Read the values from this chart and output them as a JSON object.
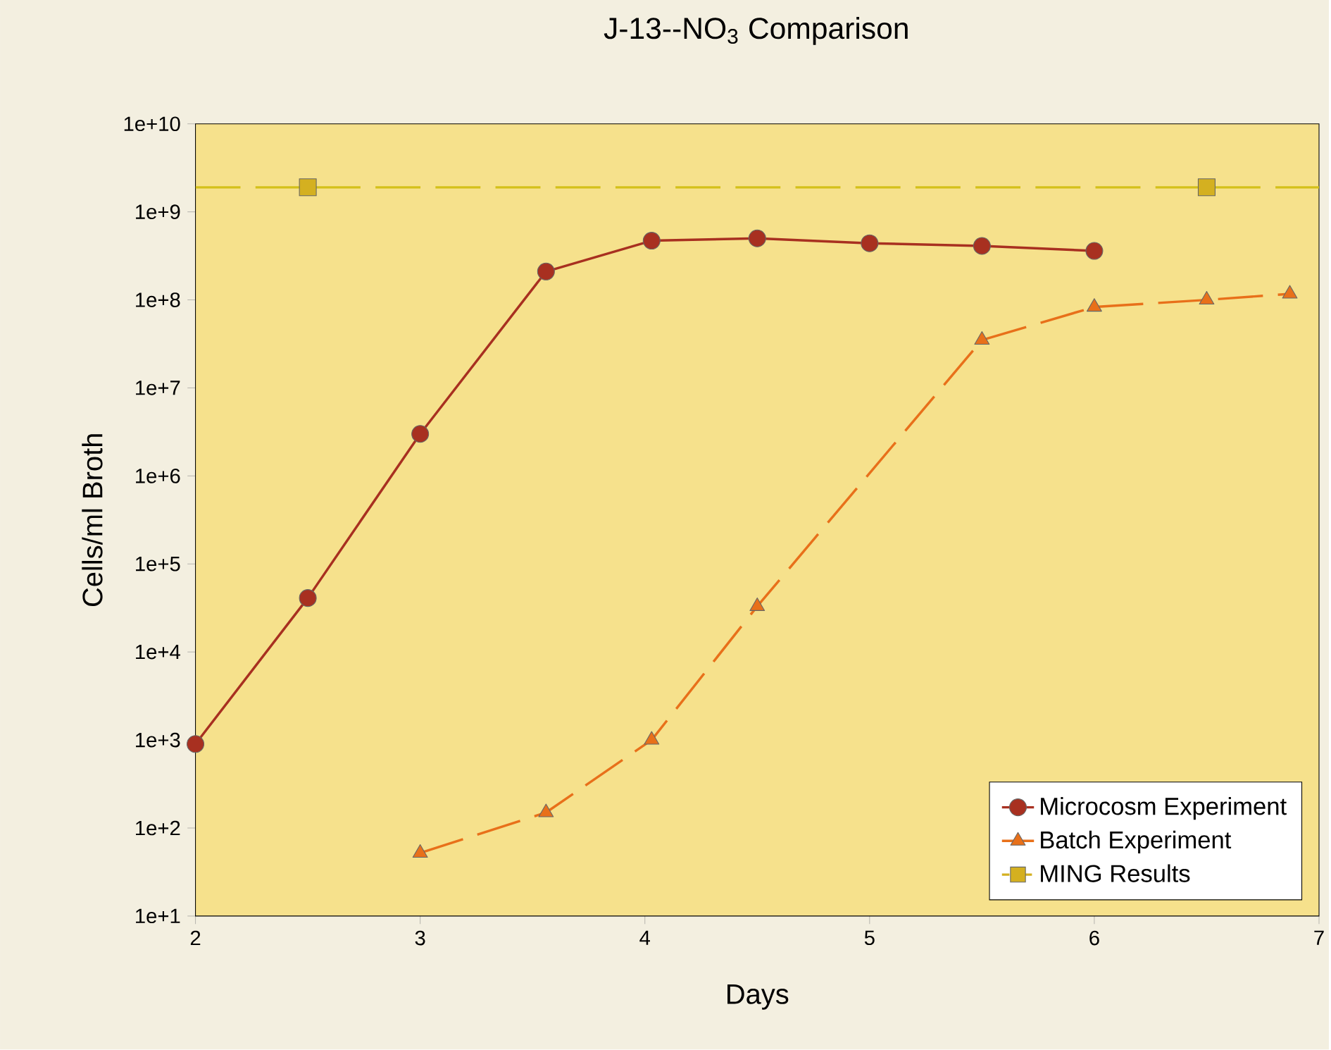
{
  "chart_data": {
    "type": "line",
    "title": "J-13--NO$_{3}$ Comparison",
    "xlabel": "Days",
    "ylabel": "Cells/ml Broth",
    "log": "y",
    "xlim": [
      2,
      7
    ],
    "xticks": [
      2,
      3,
      4,
      5,
      6,
      7
    ],
    "ylim": [
      10,
      10000000000
    ],
    "yticks": [
      {
        "value": 10,
        "label": "1e+1"
      },
      {
        "value": 100,
        "label": "1e+2"
      },
      {
        "value": 1000,
        "label": "1e+3"
      },
      {
        "value": 10000,
        "label": "1e+4"
      },
      {
        "value": 100000,
        "label": "1e+5"
      },
      {
        "value": 1000000,
        "label": "1e+6"
      },
      {
        "value": 10000000,
        "label": "1e+7"
      },
      {
        "value": 100000000,
        "label": "1e+8"
      },
      {
        "value": 1000000000,
        "label": "1e+9"
      },
      {
        "value": 10000000000,
        "label": "1e+10"
      }
    ],
    "legend": "bottom right",
    "series": [
      {
        "name": "Microcosm Experiment",
        "color": "#a83020",
        "marker": "circle",
        "line_style": "solid",
        "x": [
          2,
          2.5,
          3,
          3.56,
          4.03,
          4.5,
          5,
          5.5,
          6
        ],
        "values": [
          900,
          41000,
          3000000,
          210000000,
          470000000,
          500000000,
          440000000,
          410000000,
          360000000
        ]
      },
      {
        "name": "Batch Experiment",
        "color": "#e8701a",
        "marker": "triangle",
        "line_style": "dashed",
        "x": [
          3,
          3.56,
          4.03,
          4.5,
          5.5,
          6,
          6.5,
          6.87
        ],
        "values": [
          52,
          150,
          1000,
          33000,
          35000000,
          83000000,
          100000000,
          117000000
        ]
      },
      {
        "name": "MING Results",
        "type": "scatter",
        "color": "#d4b020",
        "marker": "square",
        "x": [
          2.5,
          6.5
        ],
        "values": [
          1900000000,
          1900000000
        ]
      }
    ],
    "ref_lines": [
      {
        "axis": "y",
        "value": 1900000000,
        "color": "#d4c01a",
        "line_style": "dashed"
      }
    ]
  }
}
